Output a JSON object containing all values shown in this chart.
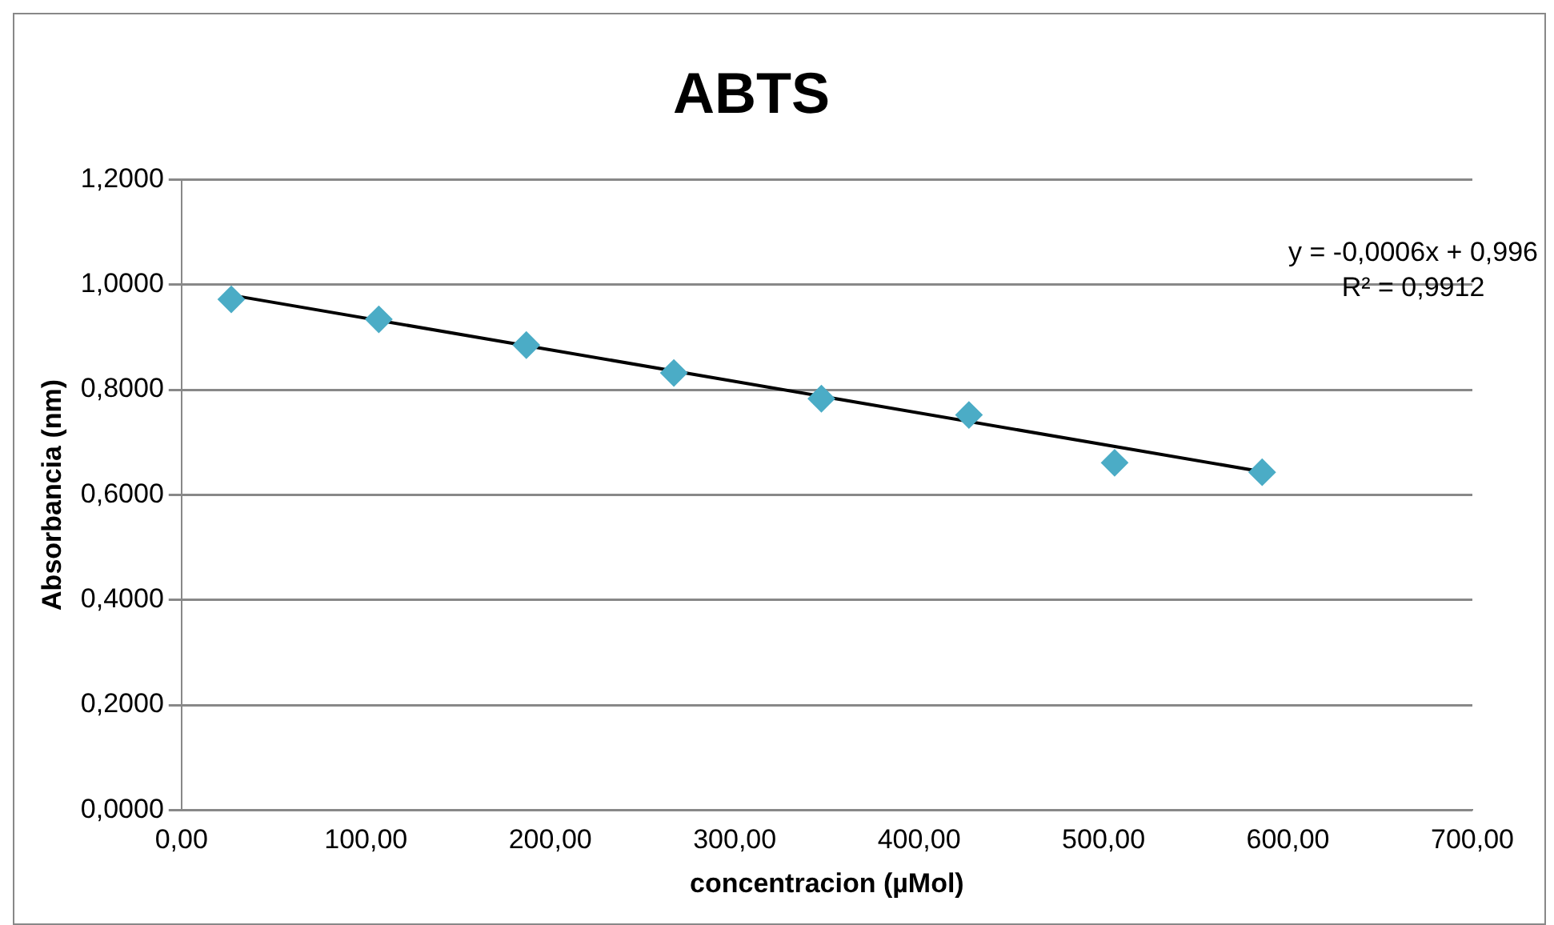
{
  "chart_data": {
    "type": "scatter",
    "title": "ABTS",
    "xlabel": "concentracion (µMol)",
    "ylabel": "Absorbancia (nm)",
    "xlim": [
      0,
      700
    ],
    "xticks": [
      {
        "value": 0,
        "label": "0,00"
      },
      {
        "value": 100,
        "label": "100,00"
      },
      {
        "value": 200,
        "label": "200,00"
      },
      {
        "value": 300,
        "label": "300,00"
      },
      {
        "value": 400,
        "label": "400,00"
      },
      {
        "value": 500,
        "label": "500,00"
      },
      {
        "value": 600,
        "label": "600,00"
      },
      {
        "value": 700,
        "label": "700,00"
      }
    ],
    "ylim": [
      0,
      1.2
    ],
    "yticks": [
      {
        "value": 0,
        "label": "0,0000"
      },
      {
        "value": 0.2,
        "label": "0,2000"
      },
      {
        "value": 0.4,
        "label": "0,4000"
      },
      {
        "value": 0.6,
        "label": "0,6000"
      },
      {
        "value": 0.8,
        "label": "0,8000"
      },
      {
        "value": 1,
        "label": "1,0000"
      },
      {
        "value": 1.2,
        "label": "1,2000"
      }
    ],
    "grid": "y",
    "series": [
      {
        "marker": "diamond",
        "color": "#4bacc6",
        "x": [
          27,
          107,
          187,
          267,
          347,
          427,
          506,
          586
        ],
        "values": [
          0.972,
          0.934,
          0.885,
          0.832,
          0.783,
          0.752,
          0.661,
          0.643
        ]
      },
      {
        "type": "line",
        "marker": "none",
        "color": "#000000",
        "x": [
          27,
          586
        ],
        "values": [
          0.98,
          0.644
        ]
      }
    ],
    "annotations": [
      "y = -0,0006x + 0,996",
      "R² = 0,9912"
    ]
  }
}
